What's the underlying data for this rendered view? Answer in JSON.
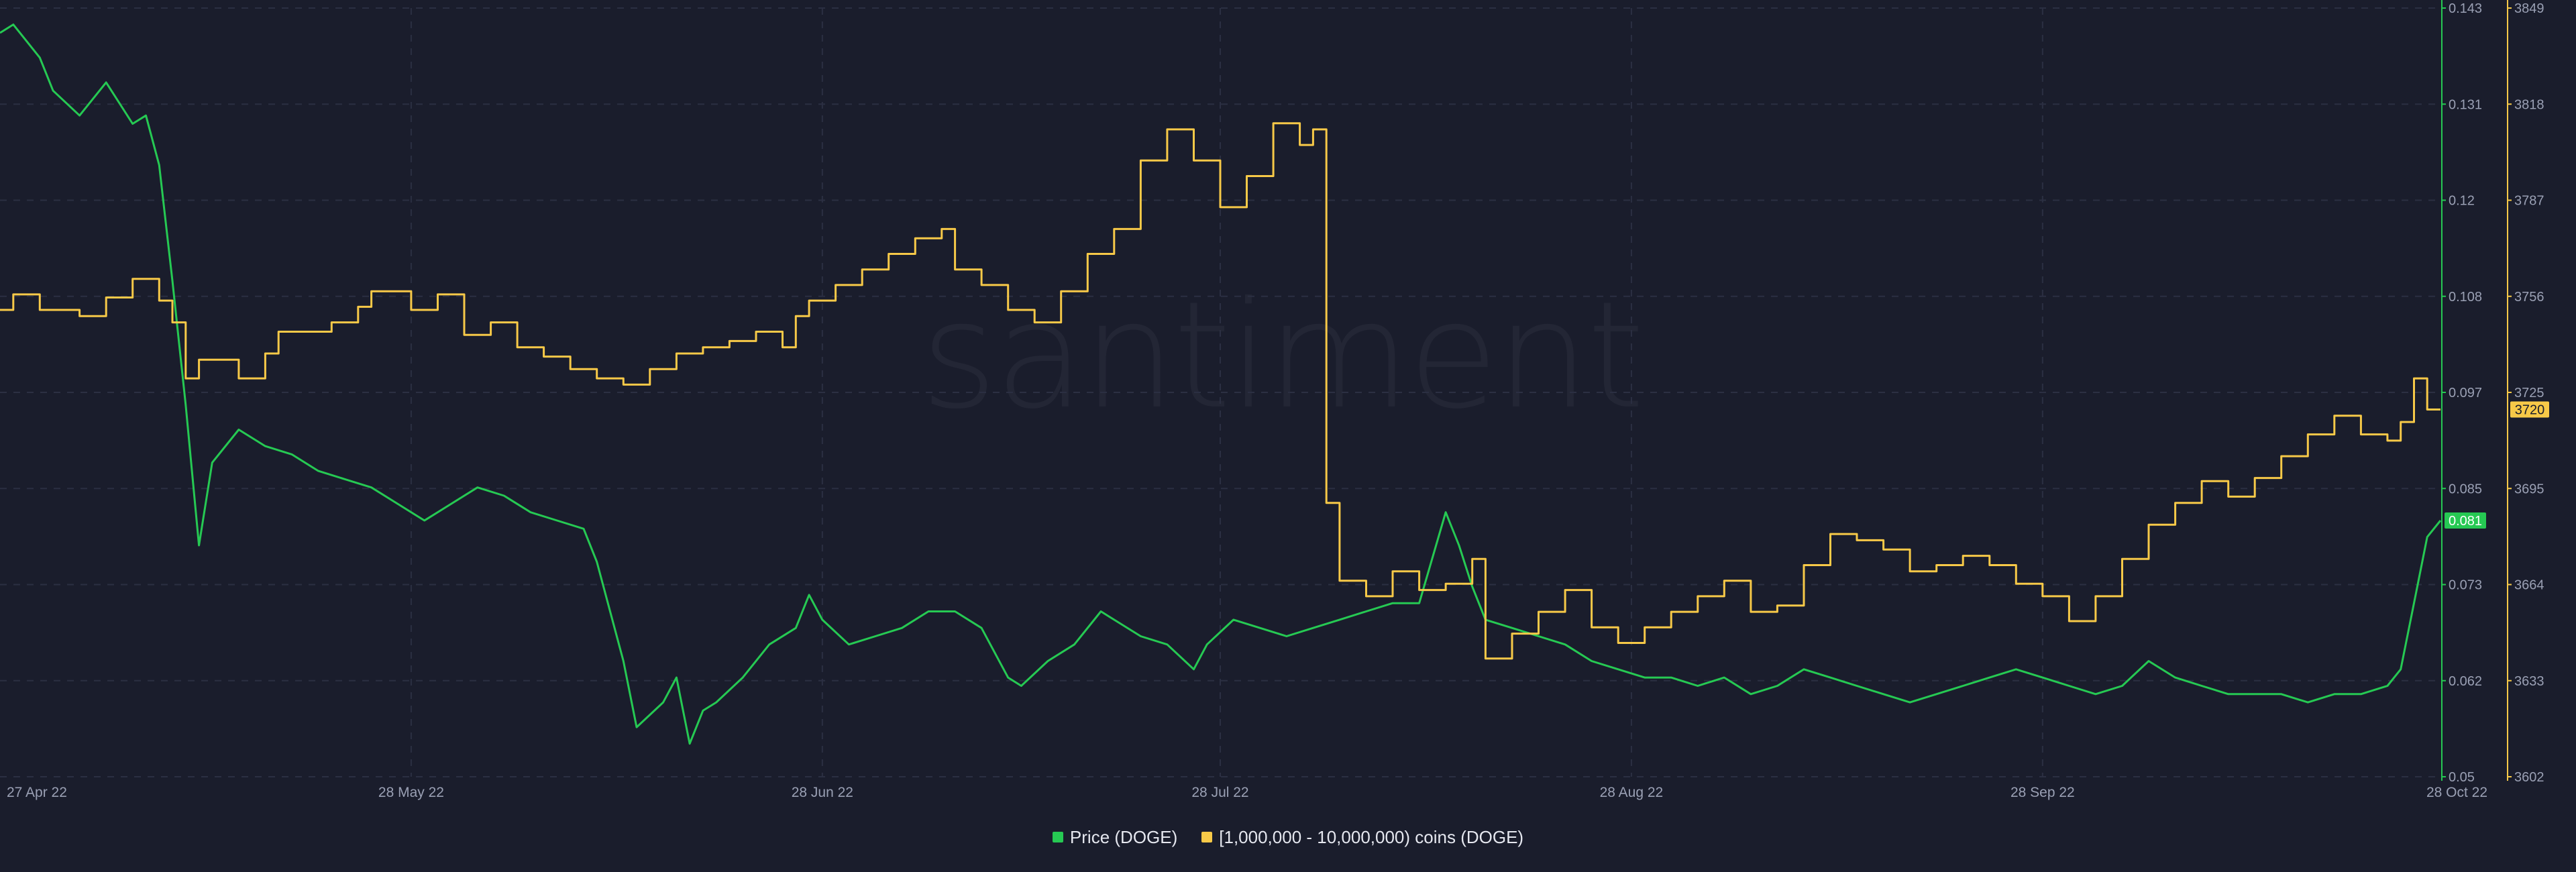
{
  "colors": {
    "background": "#1a1d2c",
    "grid": "#2b2f42",
    "price": "#26c953",
    "holders": "#f7c948",
    "tick_text": "#9aa0b4"
  },
  "watermark": "santiment",
  "legend": {
    "items": [
      {
        "label": "Price (DOGE)",
        "color": "#26c953"
      },
      {
        "label": "[1,000,000 - 10,000,000) coins (DOGE)",
        "color": "#f7c948"
      }
    ]
  },
  "chart_data": {
    "type": "line",
    "title": "",
    "x_axis": {
      "min": "2022-04-27",
      "max": "2022-10-28",
      "tick_labels": [
        {
          "date": "2022-04-27",
          "label": "27 Apr 22"
        },
        {
          "date": "2022-05-28",
          "label": "28 May 22"
        },
        {
          "date": "2022-06-28",
          "label": "28 Jun 22"
        },
        {
          "date": "2022-07-28",
          "label": "28 Jul 22"
        },
        {
          "date": "2022-08-28",
          "label": "28 Aug 22"
        },
        {
          "date": "2022-09-28",
          "label": "28 Sep 22"
        },
        {
          "date": "2022-10-28",
          "label": "28 Oct 22"
        }
      ]
    },
    "y_axes": [
      {
        "id": "price",
        "position": "right-inner",
        "min": 0.05,
        "max": 0.143,
        "ticks": [
          "0.143",
          "0.131",
          "0.12",
          "0.108",
          "0.097",
          "0.085",
          "0.073",
          "0.062",
          "0.05"
        ],
        "current_value_label": "0.081",
        "current_value": 0.081
      },
      {
        "id": "holders",
        "position": "right-outer",
        "min": 3602,
        "max": 3849,
        "ticks": [
          "3849",
          "3818",
          "3787",
          "3756",
          "3725",
          "3695",
          "3664",
          "3633",
          "3602"
        ],
        "current_value_label": "3720",
        "current_value": 3720
      }
    ],
    "grid": true,
    "legend_position": "bottom-center",
    "series": [
      {
        "name": "Price (DOGE)",
        "axis": "price",
        "color": "#26c953",
        "points": [
          [
            "2022-04-27",
            0.14
          ],
          [
            "2022-04-28",
            0.141
          ],
          [
            "2022-04-30",
            0.137
          ],
          [
            "2022-05-01",
            0.133
          ],
          [
            "2022-05-03",
            0.13
          ],
          [
            "2022-05-05",
            0.134
          ],
          [
            "2022-05-07",
            0.129
          ],
          [
            "2022-05-08",
            0.13
          ],
          [
            "2022-05-09",
            0.124
          ],
          [
            "2022-05-10",
            0.11
          ],
          [
            "2022-05-11",
            0.095
          ],
          [
            "2022-05-12",
            0.078
          ],
          [
            "2022-05-13",
            0.088
          ],
          [
            "2022-05-15",
            0.092
          ],
          [
            "2022-05-17",
            0.09
          ],
          [
            "2022-05-19",
            0.089
          ],
          [
            "2022-05-21",
            0.087
          ],
          [
            "2022-05-23",
            0.086
          ],
          [
            "2022-05-25",
            0.085
          ],
          [
            "2022-05-27",
            0.083
          ],
          [
            "2022-05-29",
            0.081
          ],
          [
            "2022-05-31",
            0.083
          ],
          [
            "2022-06-02",
            0.085
          ],
          [
            "2022-06-04",
            0.084
          ],
          [
            "2022-06-06",
            0.082
          ],
          [
            "2022-06-08",
            0.081
          ],
          [
            "2022-06-10",
            0.08
          ],
          [
            "2022-06-11",
            0.076
          ],
          [
            "2022-06-13",
            0.064
          ],
          [
            "2022-06-14",
            0.056
          ],
          [
            "2022-06-16",
            0.059
          ],
          [
            "2022-06-17",
            0.062
          ],
          [
            "2022-06-18",
            0.054
          ],
          [
            "2022-06-19",
            0.058
          ],
          [
            "2022-06-20",
            0.059
          ],
          [
            "2022-06-22",
            0.062
          ],
          [
            "2022-06-24",
            0.066
          ],
          [
            "2022-06-26",
            0.068
          ],
          [
            "2022-06-27",
            0.072
          ],
          [
            "2022-06-28",
            0.069
          ],
          [
            "2022-06-30",
            0.066
          ],
          [
            "2022-07-02",
            0.067
          ],
          [
            "2022-07-04",
            0.068
          ],
          [
            "2022-07-06",
            0.07
          ],
          [
            "2022-07-08",
            0.07
          ],
          [
            "2022-07-10",
            0.068
          ],
          [
            "2022-07-12",
            0.062
          ],
          [
            "2022-07-13",
            0.061
          ],
          [
            "2022-07-15",
            0.064
          ],
          [
            "2022-07-17",
            0.066
          ],
          [
            "2022-07-19",
            0.07
          ],
          [
            "2022-07-20",
            0.069
          ],
          [
            "2022-07-22",
            0.067
          ],
          [
            "2022-07-24",
            0.066
          ],
          [
            "2022-07-26",
            0.063
          ],
          [
            "2022-07-27",
            0.066
          ],
          [
            "2022-07-29",
            0.069
          ],
          [
            "2022-07-31",
            0.068
          ],
          [
            "2022-08-02",
            0.067
          ],
          [
            "2022-08-04",
            0.068
          ],
          [
            "2022-08-06",
            0.069
          ],
          [
            "2022-08-08",
            0.07
          ],
          [
            "2022-08-10",
            0.071
          ],
          [
            "2022-08-12",
            0.071
          ],
          [
            "2022-08-14",
            0.082
          ],
          [
            "2022-08-15",
            0.078
          ],
          [
            "2022-08-16",
            0.073
          ],
          [
            "2022-08-17",
            0.069
          ],
          [
            "2022-08-19",
            0.068
          ],
          [
            "2022-08-21",
            0.067
          ],
          [
            "2022-08-23",
            0.066
          ],
          [
            "2022-08-25",
            0.064
          ],
          [
            "2022-08-27",
            0.063
          ],
          [
            "2022-08-29",
            0.062
          ],
          [
            "2022-08-31",
            0.062
          ],
          [
            "2022-09-02",
            0.061
          ],
          [
            "2022-09-04",
            0.062
          ],
          [
            "2022-09-06",
            0.06
          ],
          [
            "2022-09-08",
            0.061
          ],
          [
            "2022-09-10",
            0.063
          ],
          [
            "2022-09-12",
            0.062
          ],
          [
            "2022-09-14",
            0.061
          ],
          [
            "2022-09-16",
            0.06
          ],
          [
            "2022-09-18",
            0.059
          ],
          [
            "2022-09-20",
            0.06
          ],
          [
            "2022-09-22",
            0.061
          ],
          [
            "2022-09-24",
            0.062
          ],
          [
            "2022-09-26",
            0.063
          ],
          [
            "2022-09-28",
            0.062
          ],
          [
            "2022-09-30",
            0.061
          ],
          [
            "2022-10-02",
            0.06
          ],
          [
            "2022-10-04",
            0.061
          ],
          [
            "2022-10-06",
            0.064
          ],
          [
            "2022-10-08",
            0.062
          ],
          [
            "2022-10-10",
            0.061
          ],
          [
            "2022-10-12",
            0.06
          ],
          [
            "2022-10-14",
            0.06
          ],
          [
            "2022-10-16",
            0.06
          ],
          [
            "2022-10-18",
            0.059
          ],
          [
            "2022-10-20",
            0.06
          ],
          [
            "2022-10-22",
            0.06
          ],
          [
            "2022-10-24",
            0.061
          ],
          [
            "2022-10-25",
            0.063
          ],
          [
            "2022-10-26",
            0.071
          ],
          [
            "2022-10-27",
            0.079
          ],
          [
            "2022-10-28",
            0.081
          ]
        ]
      },
      {
        "name": "[1,000,000 - 10,000,000) coins (DOGE)",
        "axis": "holders",
        "color": "#f7c948",
        "step": true,
        "points": [
          [
            "2022-04-27",
            3752
          ],
          [
            "2022-04-28",
            3757
          ],
          [
            "2022-04-30",
            3752
          ],
          [
            "2022-05-03",
            3750
          ],
          [
            "2022-05-05",
            3756
          ],
          [
            "2022-05-07",
            3762
          ],
          [
            "2022-05-09",
            3755
          ],
          [
            "2022-05-10",
            3748
          ],
          [
            "2022-05-11",
            3730
          ],
          [
            "2022-05-12",
            3736
          ],
          [
            "2022-05-15",
            3730
          ],
          [
            "2022-05-17",
            3738
          ],
          [
            "2022-05-18",
            3745
          ],
          [
            "2022-05-22",
            3748
          ],
          [
            "2022-05-24",
            3753
          ],
          [
            "2022-05-25",
            3758
          ],
          [
            "2022-05-28",
            3752
          ],
          [
            "2022-05-30",
            3757
          ],
          [
            "2022-06-01",
            3744
          ],
          [
            "2022-06-03",
            3748
          ],
          [
            "2022-06-05",
            3740
          ],
          [
            "2022-06-07",
            3737
          ],
          [
            "2022-06-09",
            3733
          ],
          [
            "2022-06-11",
            3730
          ],
          [
            "2022-06-13",
            3728
          ],
          [
            "2022-06-15",
            3733
          ],
          [
            "2022-06-17",
            3738
          ],
          [
            "2022-06-19",
            3740
          ],
          [
            "2022-06-21",
            3742
          ],
          [
            "2022-06-23",
            3745
          ],
          [
            "2022-06-25",
            3740
          ],
          [
            "2022-06-26",
            3750
          ],
          [
            "2022-06-27",
            3755
          ],
          [
            "2022-06-29",
            3760
          ],
          [
            "2022-07-01",
            3765
          ],
          [
            "2022-07-03",
            3770
          ],
          [
            "2022-07-05",
            3775
          ],
          [
            "2022-07-07",
            3778
          ],
          [
            "2022-07-08",
            3765
          ],
          [
            "2022-07-10",
            3760
          ],
          [
            "2022-07-12",
            3752
          ],
          [
            "2022-07-14",
            3748
          ],
          [
            "2022-07-16",
            3758
          ],
          [
            "2022-07-18",
            3770
          ],
          [
            "2022-07-20",
            3778
          ],
          [
            "2022-07-22",
            3800
          ],
          [
            "2022-07-24",
            3810
          ],
          [
            "2022-07-26",
            3800
          ],
          [
            "2022-07-28",
            3785
          ],
          [
            "2022-07-30",
            3795
          ],
          [
            "2022-08-01",
            3812
          ],
          [
            "2022-08-03",
            3805
          ],
          [
            "2022-08-04",
            3810
          ],
          [
            "2022-08-05",
            3690
          ],
          [
            "2022-08-06",
            3665
          ],
          [
            "2022-08-08",
            3660
          ],
          [
            "2022-08-10",
            3668
          ],
          [
            "2022-08-12",
            3662
          ],
          [
            "2022-08-14",
            3664
          ],
          [
            "2022-08-16",
            3672
          ],
          [
            "2022-08-17",
            3640
          ],
          [
            "2022-08-19",
            3648
          ],
          [
            "2022-08-21",
            3655
          ],
          [
            "2022-08-23",
            3662
          ],
          [
            "2022-08-25",
            3650
          ],
          [
            "2022-08-27",
            3645
          ],
          [
            "2022-08-29",
            3650
          ],
          [
            "2022-08-31",
            3655
          ],
          [
            "2022-09-02",
            3660
          ],
          [
            "2022-09-04",
            3665
          ],
          [
            "2022-09-06",
            3655
          ],
          [
            "2022-09-08",
            3657
          ],
          [
            "2022-09-10",
            3670
          ],
          [
            "2022-09-12",
            3680
          ],
          [
            "2022-09-14",
            3678
          ],
          [
            "2022-09-16",
            3675
          ],
          [
            "2022-09-18",
            3668
          ],
          [
            "2022-09-20",
            3670
          ],
          [
            "2022-09-22",
            3673
          ],
          [
            "2022-09-24",
            3670
          ],
          [
            "2022-09-26",
            3664
          ],
          [
            "2022-09-28",
            3660
          ],
          [
            "2022-09-30",
            3652
          ],
          [
            "2022-10-02",
            3660
          ],
          [
            "2022-10-04",
            3672
          ],
          [
            "2022-10-06",
            3683
          ],
          [
            "2022-10-08",
            3690
          ],
          [
            "2022-10-10",
            3697
          ],
          [
            "2022-10-12",
            3692
          ],
          [
            "2022-10-14",
            3698
          ],
          [
            "2022-10-16",
            3705
          ],
          [
            "2022-10-18",
            3712
          ],
          [
            "2022-10-20",
            3718
          ],
          [
            "2022-10-22",
            3712
          ],
          [
            "2022-10-24",
            3710
          ],
          [
            "2022-10-25",
            3716
          ],
          [
            "2022-10-26",
            3730
          ],
          [
            "2022-10-27",
            3720
          ],
          [
            "2022-10-28",
            3720
          ]
        ]
      }
    ]
  }
}
